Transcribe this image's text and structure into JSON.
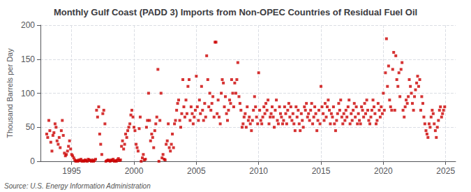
{
  "chart_data": {
    "type": "scatter",
    "title": "Monthly Gulf Coast (PADD 3) Imports from Non-OPEC Countries of Residual Fuel Oil",
    "ylabel": "Thousand Barrels per Day",
    "annotation": "Source: U.S. Energy Information Administration",
    "color": "#CC0000",
    "marker": "square",
    "grid": true,
    "xlim": [
      1992.5,
      2025.8
    ],
    "xticks": [
      1995,
      2000,
      2005,
      2010,
      2015,
      2020,
      2025
    ],
    "ylim": [
      0,
      200
    ],
    "yticks": [
      0,
      50,
      100,
      150,
      200
    ],
    "x": [
      1993.0,
      1993.08,
      1993.17,
      1993.25,
      1993.33,
      1993.42,
      1993.5,
      1993.58,
      1993.67,
      1993.75,
      1993.83,
      1993.92,
      1994.0,
      1994.08,
      1994.17,
      1994.25,
      1994.33,
      1994.42,
      1994.5,
      1994.58,
      1994.67,
      1994.75,
      1994.83,
      1994.92,
      1995.0,
      1995.08,
      1995.17,
      1995.25,
      1995.33,
      1995.42,
      1995.5,
      1995.58,
      1995.67,
      1995.75,
      1995.83,
      1995.92,
      1996.0,
      1996.08,
      1996.17,
      1996.25,
      1996.33,
      1996.42,
      1996.5,
      1996.58,
      1996.67,
      1996.75,
      1996.83,
      1996.92,
      1997.0,
      1997.08,
      1997.17,
      1997.25,
      1997.33,
      1997.42,
      1997.5,
      1997.58,
      1997.67,
      1997.75,
      1997.83,
      1997.92,
      1998.0,
      1998.08,
      1998.17,
      1998.25,
      1998.33,
      1998.42,
      1998.5,
      1998.58,
      1998.67,
      1998.75,
      1998.83,
      1998.92,
      1999.0,
      1999.08,
      1999.17,
      1999.25,
      1999.33,
      1999.42,
      1999.5,
      1999.58,
      1999.67,
      1999.75,
      1999.83,
      1999.92,
      2000.0,
      2000.08,
      2000.17,
      2000.25,
      2000.33,
      2000.42,
      2000.5,
      2000.58,
      2000.67,
      2000.75,
      2000.83,
      2000.92,
      2001.0,
      2001.08,
      2001.17,
      2001.25,
      2001.33,
      2001.42,
      2001.5,
      2001.58,
      2001.67,
      2001.75,
      2001.83,
      2001.92,
      2002.0,
      2002.08,
      2002.17,
      2002.25,
      2002.33,
      2002.42,
      2002.5,
      2002.58,
      2002.67,
      2002.75,
      2002.83,
      2002.92,
      2003.0,
      2003.08,
      2003.17,
      2003.25,
      2003.33,
      2003.42,
      2003.5,
      2003.58,
      2003.67,
      2003.75,
      2003.83,
      2003.92,
      2004.0,
      2004.08,
      2004.17,
      2004.25,
      2004.33,
      2004.42,
      2004.5,
      2004.58,
      2004.67,
      2004.75,
      2004.83,
      2004.92,
      2005.0,
      2005.08,
      2005.17,
      2005.25,
      2005.33,
      2005.42,
      2005.5,
      2005.58,
      2005.67,
      2005.75,
      2005.83,
      2005.92,
      2006.0,
      2006.08,
      2006.17,
      2006.25,
      2006.33,
      2006.42,
      2006.5,
      2006.58,
      2006.67,
      2006.75,
      2006.83,
      2006.92,
      2007.0,
      2007.08,
      2007.17,
      2007.25,
      2007.33,
      2007.42,
      2007.5,
      2007.58,
      2007.67,
      2007.75,
      2007.83,
      2007.92,
      2008.0,
      2008.08,
      2008.17,
      2008.25,
      2008.33,
      2008.42,
      2008.5,
      2008.58,
      2008.67,
      2008.75,
      2008.83,
      2008.92,
      2009.0,
      2009.08,
      2009.17,
      2009.25,
      2009.33,
      2009.42,
      2009.5,
      2009.58,
      2009.67,
      2009.75,
      2009.83,
      2009.92,
      2010.0,
      2010.08,
      2010.17,
      2010.25,
      2010.33,
      2010.42,
      2010.5,
      2010.58,
      2010.67,
      2010.75,
      2010.83,
      2010.92,
      2011.0,
      2011.08,
      2011.17,
      2011.25,
      2011.33,
      2011.42,
      2011.5,
      2011.58,
      2011.67,
      2011.75,
      2011.83,
      2011.92,
      2012.0,
      2012.08,
      2012.17,
      2012.25,
      2012.33,
      2012.42,
      2012.5,
      2012.58,
      2012.67,
      2012.75,
      2012.83,
      2012.92,
      2013.0,
      2013.08,
      2013.17,
      2013.25,
      2013.33,
      2013.42,
      2013.5,
      2013.58,
      2013.67,
      2013.75,
      2013.83,
      2013.92,
      2014.0,
      2014.08,
      2014.17,
      2014.25,
      2014.33,
      2014.42,
      2014.5,
      2014.58,
      2014.67,
      2014.75,
      2014.83,
      2014.92,
      2015.0,
      2015.08,
      2015.17,
      2015.25,
      2015.33,
      2015.42,
      2015.5,
      2015.58,
      2015.67,
      2015.75,
      2015.83,
      2015.92,
      2016.0,
      2016.08,
      2016.17,
      2016.25,
      2016.33,
      2016.42,
      2016.5,
      2016.58,
      2016.67,
      2016.75,
      2016.83,
      2016.92,
      2017.0,
      2017.08,
      2017.17,
      2017.25,
      2017.33,
      2017.42,
      2017.5,
      2017.58,
      2017.67,
      2017.75,
      2017.83,
      2017.92,
      2018.0,
      2018.08,
      2018.17,
      2018.25,
      2018.33,
      2018.42,
      2018.5,
      2018.58,
      2018.67,
      2018.75,
      2018.83,
      2018.92,
      2019.0,
      2019.08,
      2019.17,
      2019.25,
      2019.33,
      2019.42,
      2019.5,
      2019.58,
      2019.67,
      2019.75,
      2019.83,
      2019.92,
      2020.0,
      2020.08,
      2020.17,
      2020.25,
      2020.33,
      2020.42,
      2020.5,
      2020.58,
      2020.67,
      2020.75,
      2020.83,
      2020.92,
      2021.0,
      2021.08,
      2021.17,
      2021.25,
      2021.33,
      2021.42,
      2021.5,
      2021.58,
      2021.67,
      2021.75,
      2021.83,
      2021.92,
      2022.0,
      2022.08,
      2022.17,
      2022.25,
      2022.33,
      2022.42,
      2022.5,
      2022.58,
      2022.67,
      2022.75,
      2022.83,
      2022.92,
      2023.0,
      2023.08,
      2023.17,
      2023.25,
      2023.33,
      2023.42,
      2023.5,
      2023.58,
      2023.67,
      2023.75,
      2023.83,
      2023.92,
      2024.0,
      2024.08,
      2024.17,
      2024.25,
      2024.33,
      2024.42,
      2024.5,
      2024.58,
      2024.67,
      2024.75,
      2024.83,
      2024.92
    ],
    "values": [
      40,
      35,
      60,
      45,
      28,
      15,
      38,
      42,
      55,
      50,
      30,
      25,
      35,
      20,
      45,
      60,
      38,
      12,
      8,
      10,
      15,
      22,
      30,
      18,
      10,
      8,
      5,
      2,
      0,
      1,
      0,
      2,
      1,
      3,
      0,
      1,
      0,
      2,
      1,
      0,
      3,
      2,
      1,
      0,
      2,
      0,
      1,
      3,
      75,
      65,
      80,
      40,
      25,
      10,
      70,
      75,
      55,
      0,
      1,
      2,
      1,
      0,
      2,
      1,
      3,
      0,
      1,
      0,
      2,
      4,
      1,
      2,
      22,
      30,
      18,
      25,
      40,
      35,
      45,
      50,
      55,
      68,
      75,
      65,
      50,
      45,
      25,
      20,
      15,
      48,
      65,
      0,
      5,
      10,
      2,
      3,
      50,
      60,
      100,
      60,
      30,
      40,
      35,
      20,
      45,
      55,
      65,
      135,
      0,
      60,
      100,
      5,
      10,
      3,
      2,
      25,
      30,
      55,
      20,
      15,
      25,
      40,
      20,
      55,
      60,
      75,
      85,
      90,
      60,
      50,
      70,
      120,
      80,
      65,
      90,
      70,
      110,
      120,
      60,
      80,
      70,
      55,
      65,
      75,
      125,
      80,
      60,
      90,
      70,
      110,
      75,
      60,
      85,
      65,
      155,
      120,
      80,
      100,
      75,
      85,
      95,
      65,
      175,
      175,
      70,
      90,
      65,
      55,
      100,
      120,
      115,
      80,
      95,
      70,
      60,
      75,
      90,
      85,
      120,
      100,
      80,
      115,
      100,
      120,
      145,
      95,
      85,
      75,
      50,
      55,
      65,
      70,
      50,
      80,
      60,
      65,
      55,
      45,
      60,
      75,
      95,
      80,
      65,
      55,
      130,
      75,
      60,
      55,
      65,
      80,
      70,
      85,
      75,
      90,
      55,
      65,
      70,
      80,
      65,
      50,
      75,
      90,
      60,
      55,
      80,
      70,
      65,
      55,
      60,
      80,
      70,
      55,
      75,
      85,
      65,
      80,
      60,
      70,
      55,
      45,
      80,
      65,
      75,
      55,
      45,
      70,
      60,
      50,
      80,
      75,
      85,
      65,
      70,
      60,
      75,
      85,
      55,
      65,
      80,
      70,
      45,
      60,
      75,
      55,
      110,
      80,
      70,
      60,
      85,
      65,
      80,
      90,
      75,
      55,
      70,
      65,
      80,
      55,
      45,
      60,
      70,
      85,
      75,
      90,
      65,
      55,
      70,
      60,
      75,
      65,
      80,
      90,
      55,
      70,
      60,
      75,
      85,
      65,
      80,
      55,
      70,
      60,
      55,
      80,
      75,
      65,
      85,
      70,
      90,
      75,
      60,
      55,
      65,
      75,
      90,
      80,
      70,
      55,
      60,
      85,
      75,
      65,
      80,
      70,
      100,
      75,
      130,
      180,
      110,
      140,
      90,
      80,
      75,
      135,
      160,
      75,
      155,
      120,
      110,
      130,
      95,
      135,
      145,
      75,
      65,
      80,
      90,
      85,
      95,
      120,
      110,
      100,
      85,
      75,
      95,
      105,
      115,
      125,
      110,
      120,
      75,
      95,
      85,
      65,
      55,
      45,
      40,
      35,
      55,
      50,
      65,
      75,
      70,
      55,
      45,
      35,
      50,
      60,
      75,
      80,
      65,
      70,
      75,
      80
    ]
  }
}
